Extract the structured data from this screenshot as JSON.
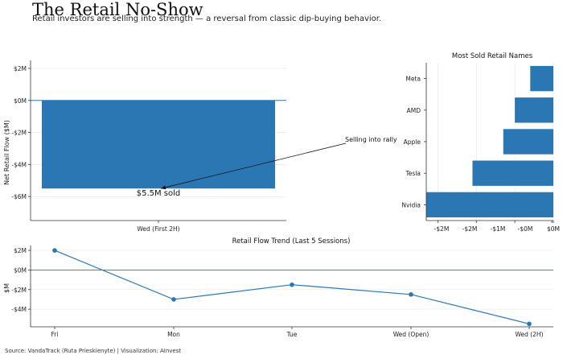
{
  "header": {
    "title": "The Retail No-Show",
    "subtitle": "Retail investors are selling into strength — a reversal from classic dip-buying behavior."
  },
  "footer": {
    "source": "Source: VandaTrack (Ruta Prieskienyte) | Visualization: AInvest"
  },
  "colors": {
    "bar": "#2a77b4",
    "line": "#2a77b4",
    "axis": "#333333",
    "grid": "#e5e5e5"
  },
  "chart_data": [
    {
      "id": "main",
      "type": "bar",
      "title": "",
      "categories": [
        "Wed (First 2H)"
      ],
      "values": [
        -5.5
      ],
      "ylabel": "Net Retail Flow ($M)",
      "xlabel": "",
      "ylim": [
        -7.5,
        2.5
      ],
      "yticks": [
        2,
        0,
        -2,
        -4,
        -6
      ],
      "ytick_labels": [
        "$2M",
        "$0M",
        "-$2M",
        "-$4M",
        "-$6M"
      ],
      "zero_line": true,
      "grid": true,
      "annotations": [
        {
          "text": "$5.5M sold"
        },
        {
          "text": "Selling into rally",
          "arrow": true
        }
      ]
    },
    {
      "id": "names",
      "type": "bar",
      "orientation": "horizontal",
      "title": "Most Sold Retail Names",
      "categories": [
        "Meta",
        "AMD",
        "Apple",
        "Tesla",
        "Nvidia"
      ],
      "values": [
        -0.3,
        -0.5,
        -0.65,
        -1.05,
        -1.65
      ],
      "xlim": [
        -1.65,
        0
      ],
      "xticks": [
        -1.5,
        -1.0,
        -0.5,
        0.0
      ],
      "xtick_labels": [
        "-$2M",
        "-$2M",
        "-$1M",
        "-$0M",
        "$0M"
      ],
      "xtick_values": [
        -1.5,
        -1.0,
        -0.5,
        -0.02,
        0.0
      ],
      "grid": true
    },
    {
      "id": "trend",
      "type": "line",
      "title": "Retail Flow Trend (Last 5 Sessions)",
      "categories": [
        "Fri",
        "Mon",
        "Tue",
        "Wed (Open)",
        "Wed (2H)"
      ],
      "values": [
        2.0,
        -3.0,
        -1.5,
        -2.5,
        -5.5
      ],
      "ylabel": "$M",
      "ylim": [
        -5.8,
        2.5
      ],
      "yticks": [
        2,
        0,
        -2,
        -4
      ],
      "ytick_labels": [
        "$2M",
        "$0M",
        "-$2M",
        "-$4M"
      ],
      "zero_line": true,
      "grid": true
    }
  ]
}
